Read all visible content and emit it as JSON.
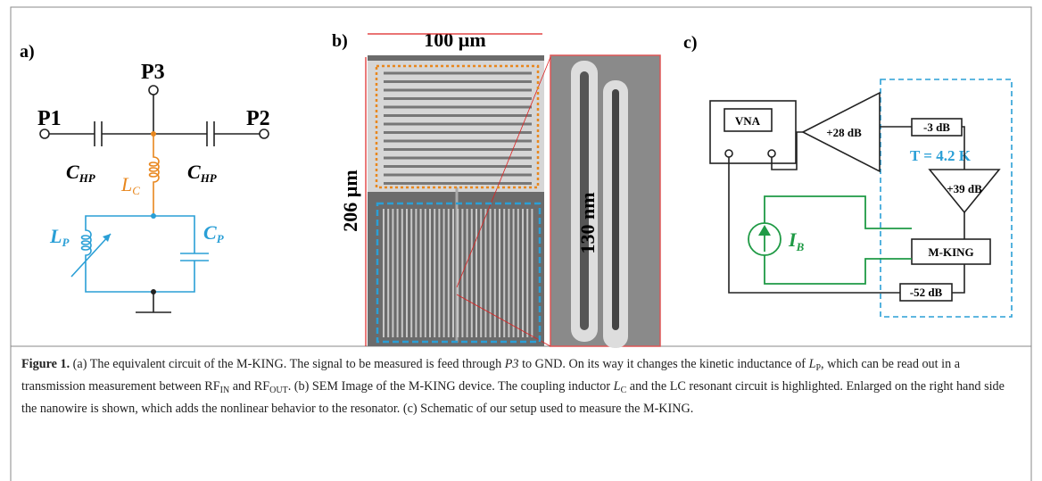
{
  "panels": {
    "a": {
      "label": "a)",
      "p1": "P1",
      "p2": "P2",
      "p3": "P3",
      "c_hp_left": {
        "main": "C",
        "sub": "HP"
      },
      "c_hp_right": {
        "main": "C",
        "sub": "HP"
      },
      "l_c": {
        "main": "L",
        "sub": "C"
      },
      "l_p": {
        "main": "L",
        "sub": "P"
      },
      "c_p": {
        "main": "C",
        "sub": "P"
      }
    },
    "b": {
      "label": "b)",
      "width_label": "100 µm",
      "height_label": "206 µm",
      "wire_label": "130 nm"
    },
    "c": {
      "label": "c)",
      "vna": "VNA",
      "amp1": "+28 dB",
      "att1": "-3 dB",
      "temperature": "T = 4.2 K",
      "amp2": "+39 dB",
      "current": {
        "main": "I",
        "sub": "B"
      },
      "device": "M-KING",
      "att2": "-52 dB"
    }
  },
  "caption": {
    "runs": [
      {
        "text": "Figure 1.",
        "style": "bold"
      },
      {
        "text": " (a) The equivalent circuit of the M-KING. The signal to be measured is feed through ",
        "style": "normal"
      },
      {
        "text": "P3",
        "style": "italic"
      },
      {
        "text": " to GND. On its way it changes the kinetic inductance of ",
        "style": "normal"
      },
      {
        "text": "L",
        "style": "italic"
      },
      {
        "text": "P",
        "style": "sub"
      },
      {
        "text": ", which can be read out in a transmission measurement between RF",
        "style": "normal"
      },
      {
        "text": "IN",
        "style": "sub"
      },
      {
        "text": " and RF",
        "style": "normal"
      },
      {
        "text": "OUT",
        "style": "sub"
      },
      {
        "text": ". (b) SEM Image of the M-KING device. The coupling inductor ",
        "style": "normal"
      },
      {
        "text": "L",
        "style": "italic"
      },
      {
        "text": "C",
        "style": "sub"
      },
      {
        "text": " and the LC resonant circuit is highlighted. Enlarged on the right hand side the nanowire is shown, which adds the nonlinear behavior to the resonator. (c) Schematic of our setup used to measure the M-KING.",
        "style": "normal"
      }
    ]
  }
}
